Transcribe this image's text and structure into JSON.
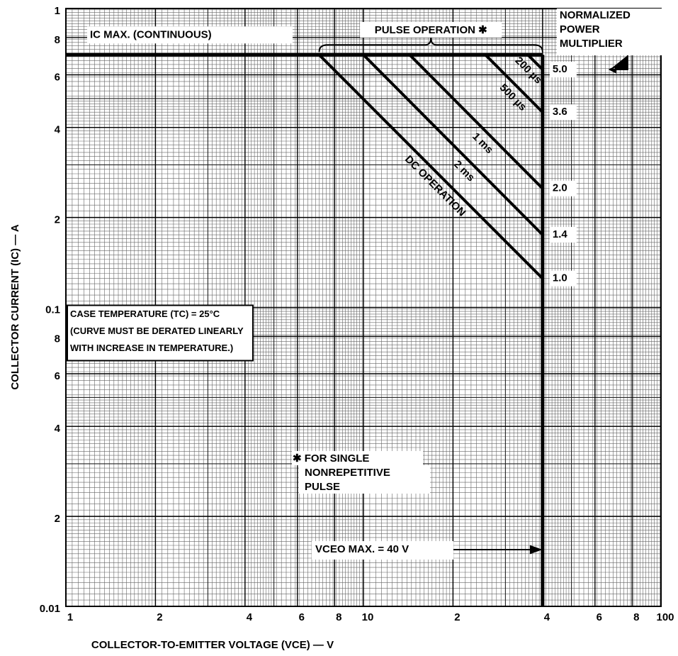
{
  "chart_data": {
    "type": "line",
    "log_x": true,
    "log_y": true,
    "grid": true,
    "color": "#000000",
    "x_label": "COLLECTOR-TO-EMITTER VOLTAGE (VCE) — V",
    "y_label": "COLLECTOR CURRENT (IC) — A",
    "xlim": [
      1,
      100
    ],
    "ylim": [
      0.01,
      1
    ],
    "xticks": [
      1,
      2,
      4,
      6,
      8,
      10,
      {
        "value": 20,
        "label": "2"
      },
      {
        "value": 40,
        "label": "4"
      },
      {
        "value": 60,
        "label": "6"
      },
      {
        "value": 80,
        "label": "8"
      },
      100
    ],
    "yticks": [
      {
        "value": 0.01,
        "label": "0.01"
      },
      {
        "value": 0.02,
        "label": "2"
      },
      {
        "value": 0.04,
        "label": "4"
      },
      {
        "value": 0.06,
        "label": "6"
      },
      {
        "value": 0.08,
        "label": "8"
      },
      0.1,
      {
        "value": 0.2,
        "label": "2"
      },
      {
        "value": 0.4,
        "label": "4"
      },
      {
        "value": 0.6,
        "label": "6"
      },
      {
        "value": 0.8,
        "label": "8"
      },
      1
    ],
    "series": [
      {
        "name": "DC OPERATION",
        "x": [
          7.1,
          40
        ],
        "values": [
          0.7,
          0.125
        ],
        "multiplier": "1.0"
      },
      {
        "name": "2 ms",
        "x": [
          10,
          40
        ],
        "values": [
          0.7,
          0.175
        ],
        "multiplier": "1.4"
      },
      {
        "name": "1 ms",
        "x": [
          14.3,
          40
        ],
        "values": [
          0.7,
          0.25
        ],
        "multiplier": "2.0"
      },
      {
        "name": "500 µs",
        "x": [
          25.7,
          40
        ],
        "values": [
          0.7,
          0.45
        ],
        "multiplier": "3.6"
      },
      {
        "name": "200 µs",
        "x": [
          35.7,
          40
        ],
        "values": [
          0.7,
          0.625
        ],
        "multiplier": "5.0"
      }
    ],
    "ic_max": {
      "label": "IC MAX. (CONTINUOUS)",
      "value": 0.7
    },
    "vceo_max": {
      "label": "VCEO MAX. = 40 V",
      "value": 40
    },
    "pulse_note": "PULSE OPERATION ✱",
    "multiplier_title": [
      "NORMALIZED",
      "POWER",
      "MULTIPLIER"
    ],
    "case_note": [
      "CASE TEMPERATURE (TC) = 25°C",
      "(CURVE MUST BE DERATED LINEARLY",
      "WITH INCREASE IN TEMPERATURE.)"
    ],
    "footnote": [
      "✱ FOR SINGLE",
      "NONREPETITIVE",
      "PULSE"
    ]
  }
}
